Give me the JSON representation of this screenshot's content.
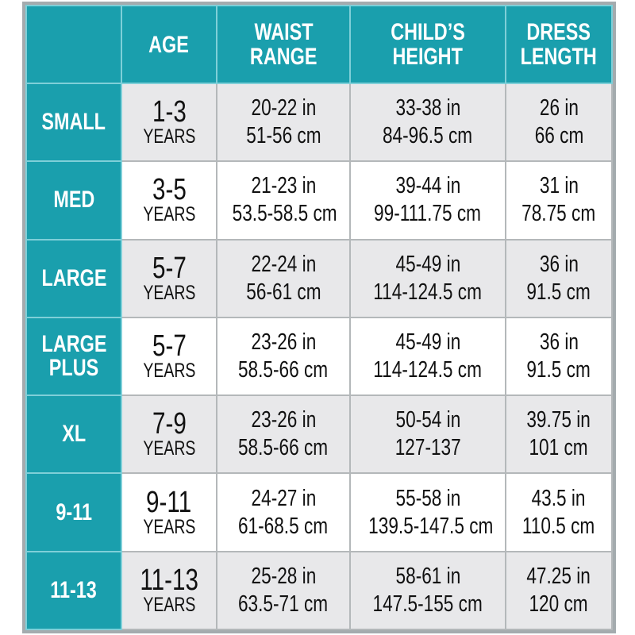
{
  "headers": [
    "",
    "AGE",
    "WAISTRANGE",
    "CHILD'S HEIGHT",
    "DRESS LENGTH"
  ],
  "header_lines": [
    [
      ""
    ],
    [
      "AGE"
    ],
    [
      "WAIST",
      "RANGE"
    ],
    [
      "CHILD’S",
      "HEIGHT"
    ],
    [
      "DRESS",
      "LENGTH"
    ]
  ],
  "colors": {
    "teal": "#1a9fad",
    "gray_row": "#e8e8ea",
    "white_row": "#ffffff"
  },
  "rows": [
    {
      "size": [
        "SMALL"
      ],
      "age": "1-3",
      "age_unit": "YEARS",
      "waist": [
        "20-22 in",
        "51-56 cm"
      ],
      "height": [
        "33-38 in",
        "84-96.5 cm"
      ],
      "length": [
        "26 in",
        "66 cm"
      ]
    },
    {
      "size": [
        "MED"
      ],
      "age": "3-5",
      "age_unit": "YEARS",
      "waist": [
        "21-23 in",
        "53.5-58.5 cm"
      ],
      "height": [
        "39-44 in",
        "99-111.75 cm"
      ],
      "length": [
        "31 in",
        "78.75 cm"
      ]
    },
    {
      "size": [
        "LARGE"
      ],
      "age": "5-7",
      "age_unit": "YEARS",
      "waist": [
        "22-24 in",
        "56-61 cm"
      ],
      "height": [
        "45-49 in",
        "114-124.5 cm"
      ],
      "length": [
        "36 in",
        "91.5 cm"
      ]
    },
    {
      "size": [
        "LARGE",
        "PLUS"
      ],
      "age": "5-7",
      "age_unit": "YEARS",
      "waist": [
        "23-26 in",
        "58.5-66 cm"
      ],
      "height": [
        "45-49 in",
        "114-124.5 cm"
      ],
      "length": [
        "36 in",
        "91.5 cm"
      ]
    },
    {
      "size": [
        "XL"
      ],
      "age": "7-9",
      "age_unit": "YEARS",
      "waist": [
        "23-26 in",
        "58.5-66 cm"
      ],
      "height": [
        "50-54 in",
        "127-137"
      ],
      "length": [
        "39.75 in",
        "101 cm"
      ]
    },
    {
      "size": [
        "9-11"
      ],
      "age": "9-11",
      "age_unit": "YEARS",
      "waist": [
        "24-27 in",
        "61-68.5 cm"
      ],
      "height": [
        "55-58 in",
        "139.5-147.5 cm"
      ],
      "length": [
        "43.5 in",
        "110.5 cm"
      ]
    },
    {
      "size": [
        "11-13"
      ],
      "age": "11-13",
      "age_unit": "YEARS",
      "waist": [
        "25-28 in",
        "63.5-71 cm"
      ],
      "height": [
        "58-61 in",
        "147.5-155 cm"
      ],
      "length": [
        "47.25 in",
        "120 cm"
      ]
    }
  ]
}
